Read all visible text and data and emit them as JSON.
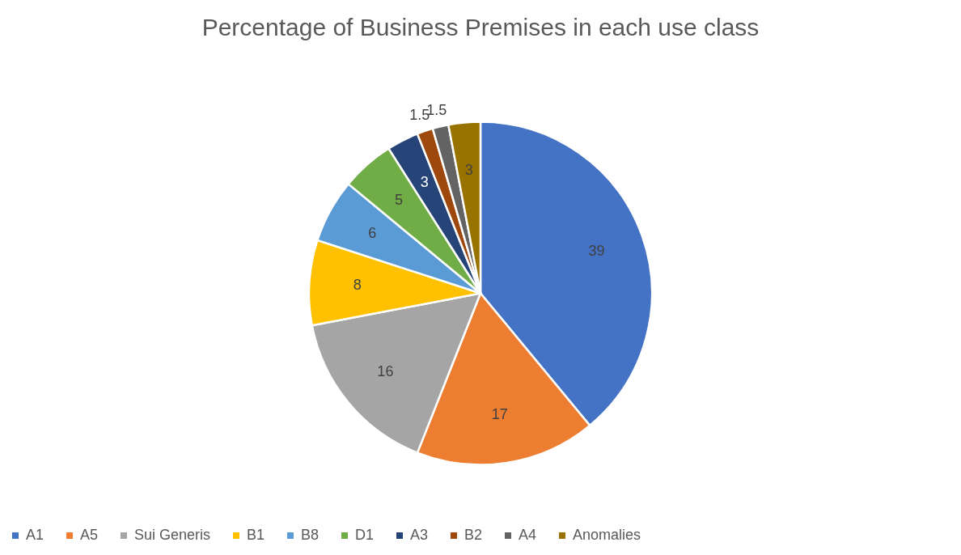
{
  "chart_data": {
    "type": "pie",
    "title": "Percentage of Business Premises in each use class",
    "categories": [
      "A1",
      "A5",
      "Sui Generis",
      "B1",
      "B8",
      "D1",
      "A3",
      "B2",
      "A4",
      "Anomalies"
    ],
    "values": [
      39,
      17,
      16,
      8,
      6,
      5,
      3,
      1.5,
      1.5,
      3
    ],
    "colors": [
      "#4472c4",
      "#ed7d31",
      "#a5a5a5",
      "#ffc000",
      "#5b9bd5",
      "#70ad47",
      "#264478",
      "#9e480e",
      "#636363",
      "#997300"
    ],
    "data_labels": true,
    "legend": "bottom"
  }
}
